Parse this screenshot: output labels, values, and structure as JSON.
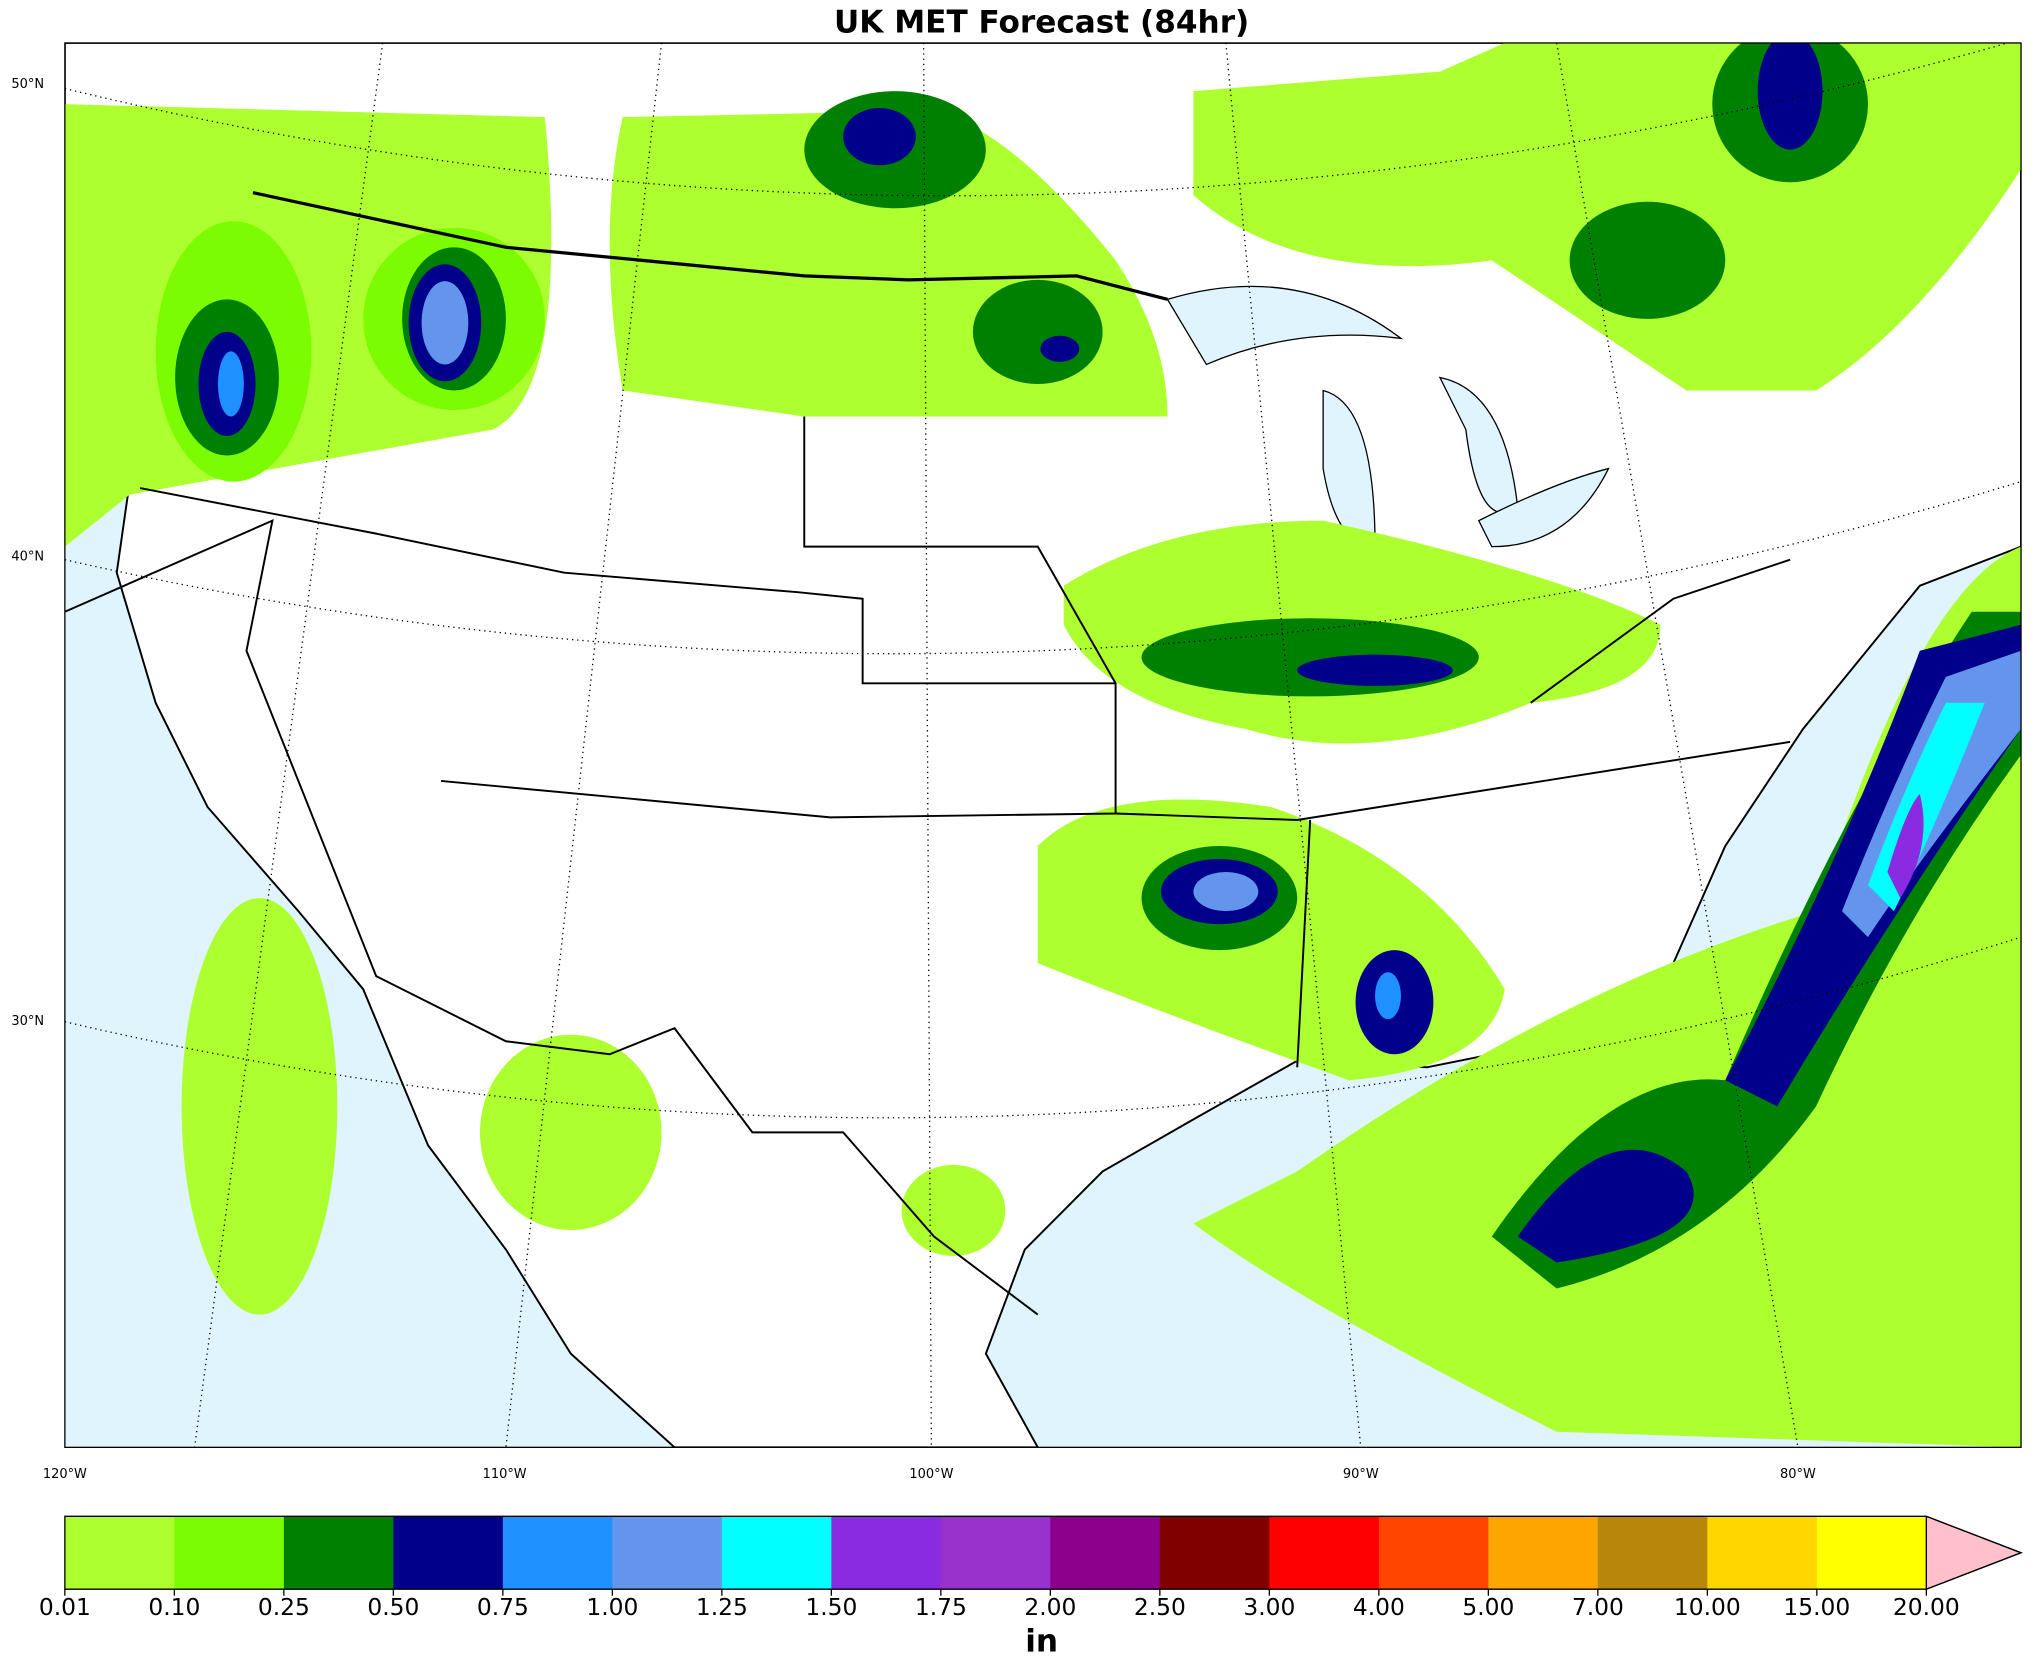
{
  "title": "UK MET Forecast (84hr)",
  "lat_labels": [
    "50°N",
    "40°N",
    "30°N"
  ],
  "lon_labels": [
    "120°W",
    "110°W",
    "100°W",
    "90°W",
    "80°W"
  ],
  "colorbar": {
    "label": "in",
    "ticks": [
      0.01,
      {
        "value": 0.1,
        "label": "0.10"
      },
      0.25,
      {
        "value": 0.5,
        "label": "0.50"
      },
      0.75,
      {
        "value": 1,
        "label": "1.00"
      },
      1.25,
      {
        "value": 1.5,
        "label": "1.50"
      },
      1.75,
      {
        "value": 2,
        "label": "2.00"
      },
      {
        "value": 2.5,
        "label": "2.50"
      },
      {
        "value": 3,
        "label": "3.00"
      },
      {
        "value": 4,
        "label": "4.00"
      },
      {
        "value": 5,
        "label": "5.00"
      },
      {
        "value": 7,
        "label": "7.00"
      },
      {
        "value": 10,
        "label": "10.00"
      },
      {
        "value": 15,
        "label": "15.00"
      },
      {
        "value": 20,
        "label": "20.00"
      }
    ],
    "colors": [
      "#adff2f",
      "#7cfc00",
      "#008000",
      "#00008b",
      "#1e90ff",
      "#6495ed",
      "#00ffff",
      "#8a2be2",
      "#9932cc",
      "#8b008b",
      "#800000",
      "#ff0000",
      "#ff4500",
      "#ffa500",
      "#b8860b",
      "#ffd700",
      "#ffff00"
    ],
    "extend_color": "#ffc0cb"
  }
}
